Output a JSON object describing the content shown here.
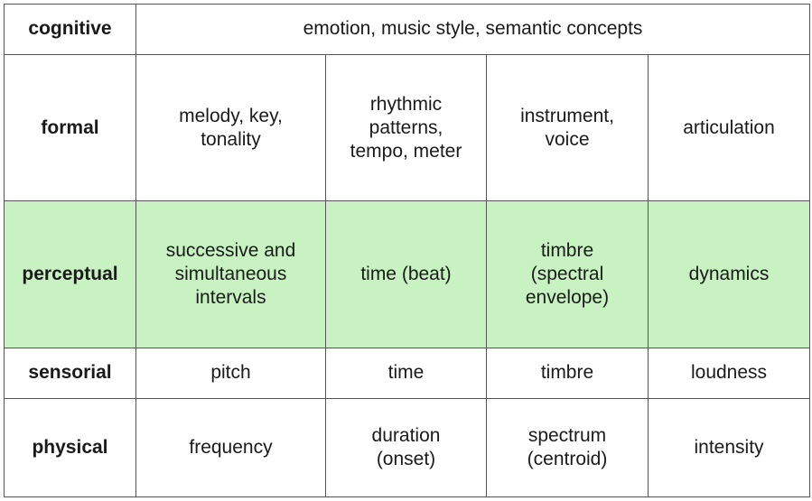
{
  "colors": {
    "highlight_row": "#c8f2c2",
    "border": "#555555",
    "background": "#ffffff"
  },
  "rows": [
    {
      "level": "cognitive",
      "cells": [
        "emotion,  music style,  semantic  concepts"
      ],
      "highlight": false
    },
    {
      "level": "formal",
      "cells": [
        "melody, key,\ntonality",
        "rhythmic\npatterns,\ntempo,  meter",
        "instrument,\nvoice",
        "articulation"
      ],
      "highlight": false
    },
    {
      "level": "perceptual",
      "cells": [
        "successive and\nsimultaneous\nintervals",
        "time  (beat)",
        "timbre\n(spectral\nenvelope)",
        "dynamics"
      ],
      "highlight": true
    },
    {
      "level": "sensorial",
      "cells": [
        "pitch",
        "time",
        "timbre",
        "loudness"
      ],
      "highlight": false
    },
    {
      "level": "physical",
      "cells": [
        "frequency",
        "duration\n(onset)",
        "spectrum\n(centroid)",
        "intensity"
      ],
      "highlight": false
    }
  ]
}
